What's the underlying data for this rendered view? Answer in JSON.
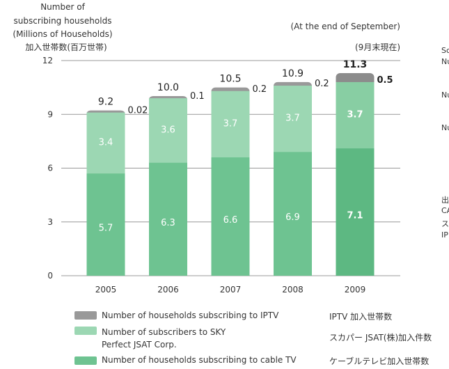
{
  "chart_data": {
    "type": "bar",
    "stacked": true,
    "categories": [
      "2005",
      "2006",
      "2007",
      "2008",
      "2009"
    ],
    "series": [
      {
        "name": "Number of households subscribing to cable TV",
        "name_jp": "ケーブルテレビ加入世帯数",
        "color": "#6ec391",
        "values": [
          5.7,
          6.3,
          6.6,
          6.9,
          7.1
        ]
      },
      {
        "name": "Number of subscribers to SKY Perfect JSAT Corp.",
        "name_jp": "スカパー JSAT(株)加入件数",
        "color": "#9cd7b3",
        "values": [
          3.4,
          3.6,
          3.7,
          3.7,
          3.7
        ]
      },
      {
        "name": "Number of households subscribing to IPTV",
        "name_jp": "IPTV 加入世帯数",
        "color": "#999999",
        "values": [
          0.02,
          0.1,
          0.2,
          0.2,
          0.5
        ]
      }
    ],
    "totals": [
      "9.2",
      "10.0",
      "10.5",
      "10.9",
      "11.3"
    ],
    "value_labels": {
      "cable": [
        "5.7",
        "6.3",
        "6.6",
        "6.9",
        "7.1"
      ],
      "sky": [
        "3.4",
        "3.6",
        "3.7",
        "3.7",
        "3.7"
      ],
      "iptv": [
        "0.02",
        "0.1",
        "0.2",
        "0.2",
        "0.5"
      ]
    },
    "ylim": [
      0,
      12
    ],
    "yticks": [
      "0",
      "3",
      "6",
      "9",
      "12"
    ],
    "ylabel_lines": [
      "Number of",
      "subscribing households",
      "(Millions of Households)",
      "加入世帯数(百万世帯)"
    ],
    "annotation_en": "(At the end of September)",
    "annotation_jp": "(9月末現在)",
    "highlight_category": "2009",
    "grid": true,
    "legend_position": "bottom"
  },
  "side_texts": [
    "Sc",
    "Nu",
    "Nu",
    "Nu",
    "出",
    "CA",
    "ス",
    "IP"
  ]
}
